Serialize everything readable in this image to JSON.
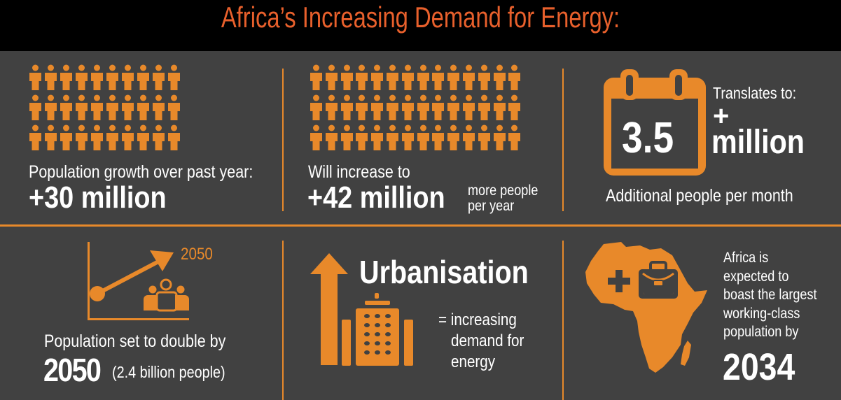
{
  "title": "Africa’s Increasing Demand for Energy:",
  "colors": {
    "accent": "#e8892a",
    "title": "#e8602c",
    "panel": "#414141",
    "background": "#000000",
    "text": "#ffffff"
  },
  "top_row": {
    "growth": {
      "icon": "people-grid-icon",
      "icon_count": 30,
      "label": "Population growth over past year:",
      "value": "+30 million"
    },
    "increase": {
      "icon": "people-grid-icon",
      "icon_count": 42,
      "label": "Will increase to",
      "value": "+42 million",
      "suffix_line1": "more people",
      "suffix_line2": "per year"
    },
    "monthly": {
      "icon": "calendar-icon",
      "calendar_value": "3.5",
      "label": "Translates to:",
      "plus": "+",
      "value": "million",
      "caption": "Additional people per month"
    }
  },
  "bottom_row": {
    "double": {
      "icon": "growth-chart-icon",
      "chart_label": "2050",
      "label": "Population set to double by",
      "year": "2050",
      "note": "(2.4 billion people)"
    },
    "urbanisation": {
      "icon": "up-arrow-building-icon",
      "heading": "Urbanisation",
      "line1": "= increasing",
      "line2": "demand for",
      "line3": "energy"
    },
    "workforce": {
      "icon": "africa-map-briefcase-icon",
      "line1": "Africa is",
      "line2": "expected to",
      "line3": "boast the largest",
      "line4": "working-class",
      "line5": "population by",
      "year": "2034"
    }
  }
}
